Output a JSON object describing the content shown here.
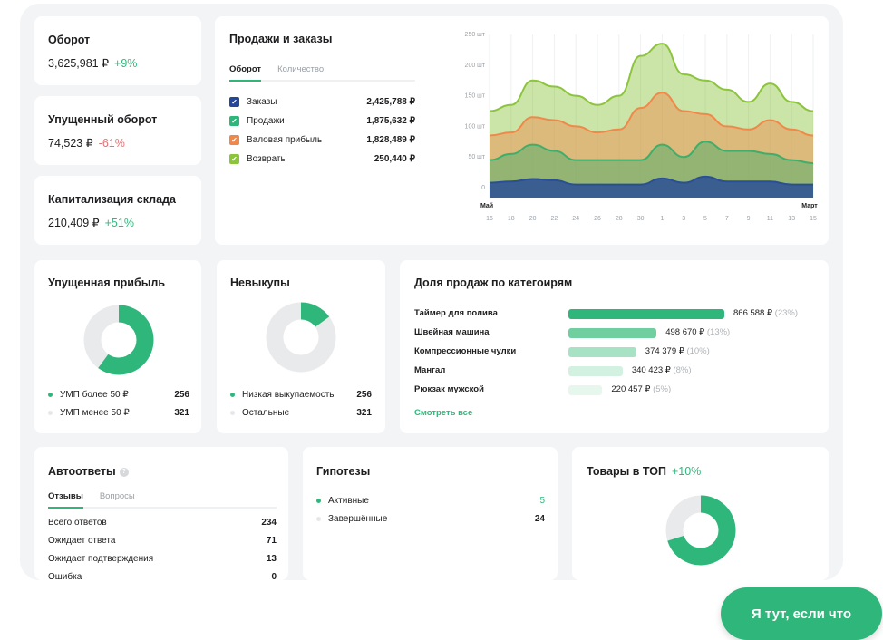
{
  "kpi": [
    {
      "title": "Оборот",
      "value": "3,625,981 ₽",
      "delta": "+9%",
      "trend": "up"
    },
    {
      "title": "Упущенный оборот",
      "value": "74,523 ₽",
      "delta": "-61%",
      "trend": "down"
    },
    {
      "title": "Капитализация склада",
      "value": "210,409 ₽",
      "delta": "+51%",
      "trend": "up"
    }
  ],
  "sales": {
    "title": "Продажи и заказы",
    "tabs": [
      "Оборот",
      "Количество"
    ],
    "active_tab": "Оборот",
    "legend": [
      {
        "name": "Заказы",
        "value": "2,425,788 ₽",
        "color": "#23479a",
        "checked": true
      },
      {
        "name": "Продажи",
        "value": "1,875,632 ₽",
        "color": "#2fb77b",
        "checked": true
      },
      {
        "name": "Валовая прибыль",
        "value": "1,828,489 ₽",
        "color": "#f0884a",
        "checked": true
      },
      {
        "name": "Возвраты",
        "value": "250,440 ₽",
        "color": "#8cc43c",
        "checked": true
      }
    ]
  },
  "chart_data": {
    "type": "area",
    "stacked": true,
    "y_ticks": [
      "0",
      "50 шт",
      "100 шт",
      "150 шт",
      "200 шт",
      "250 шт"
    ],
    "ylim": [
      0,
      250
    ],
    "months": [
      "Май",
      "Март"
    ],
    "x": [
      "16",
      "18",
      "20",
      "22",
      "24",
      "26",
      "28",
      "30",
      "1",
      "3",
      "5",
      "7",
      "9",
      "11",
      "13",
      "15"
    ],
    "grid": "vertical",
    "series": [
      {
        "name": "Заказы",
        "color": "#2a4f94",
        "values": [
          8,
          10,
          14,
          12,
          5,
          5,
          5,
          5,
          15,
          8,
          18,
          10,
          10,
          10,
          5,
          5
        ]
      },
      {
        "name": "Продажи",
        "color": "#3fae6a",
        "values": [
          37,
          45,
          56,
          48,
          40,
          40,
          40,
          40,
          55,
          42,
          57,
          50,
          50,
          45,
          40,
          35
        ]
      },
      {
        "name": "Валовая прибыль",
        "color": "#f0884a",
        "values": [
          40,
          35,
          45,
          50,
          55,
          45,
          50,
          85,
          85,
          75,
          45,
          40,
          35,
          55,
          50,
          45
        ]
      },
      {
        "name": "Возвраты",
        "color": "#8cc43c",
        "values": [
          40,
          45,
          60,
          55,
          50,
          45,
          55,
          85,
          80,
          60,
          55,
          60,
          45,
          60,
          45,
          40
        ]
      }
    ]
  },
  "lost_profit": {
    "title": "Упущенная прибыль",
    "green_fraction": 0.6,
    "rows": [
      {
        "label": "УМП более 50 ₽",
        "value": "256"
      },
      {
        "label": "УМП менее 50 ₽",
        "value": "321"
      }
    ]
  },
  "returns": {
    "title": "Невыкупы",
    "green_fraction": 0.15,
    "rows": [
      {
        "label": "Низкая выкупаемость",
        "value": "256"
      },
      {
        "label": "Остальные",
        "value": "321"
      }
    ]
  },
  "categories": {
    "title": "Доля продаж по категоирям",
    "link": "Смотреть все",
    "items": [
      {
        "name": "Таймер для полива",
        "amount": "866 588 ₽",
        "share": "(23%)",
        "pct": 23,
        "color": "#2fb77b"
      },
      {
        "name": "Швейная машина",
        "amount": "498 670 ₽",
        "share": "(13%)",
        "pct": 13,
        "color": "#6fcf9e"
      },
      {
        "name": "Компрессионные чулки",
        "amount": "374 379 ₽",
        "share": "(10%)",
        "pct": 10,
        "color": "#a6e2c3"
      },
      {
        "name": "Мангал",
        "amount": "340 423 ₽",
        "share": "(8%)",
        "pct": 8,
        "color": "#d2f1e1"
      },
      {
        "name": "Рюкзак мужской",
        "amount": "220 457 ₽",
        "share": "(5%)",
        "pct": 5,
        "color": "#e6f7ee"
      }
    ]
  },
  "autoreplies": {
    "title": "Автоответы",
    "tabs": [
      "Отзывы",
      "Вопросы"
    ],
    "rows": [
      {
        "label": "Всего ответов",
        "value": "234"
      },
      {
        "label": "Ожидает ответа",
        "value": "71"
      },
      {
        "label": "Ожидает подтверждения",
        "value": "13"
      },
      {
        "label": "Ошибка",
        "value": "0"
      }
    ]
  },
  "hypotheses": {
    "title": "Гипотезы",
    "rows": [
      {
        "label": "Активные",
        "value": "5"
      },
      {
        "label": "Завершённые",
        "value": "24"
      }
    ]
  },
  "top": {
    "title": "Товары в ТОП",
    "delta": "+10%",
    "green_fraction": 0.7
  },
  "chat_button": "Я тут, если что"
}
